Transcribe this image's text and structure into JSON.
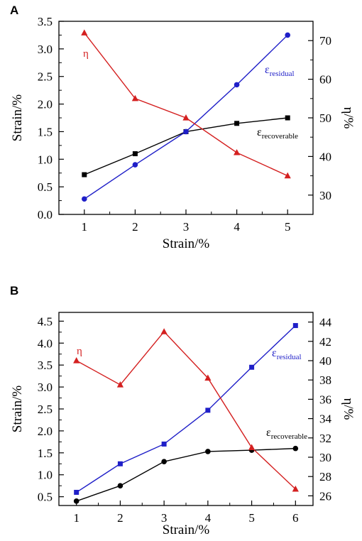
{
  "chart_data": [
    {
      "type": "line",
      "panel": "A",
      "xlabel": "Strain/%",
      "ylabel_left": "Strain/%",
      "ylabel_right": "η/%",
      "x": [
        1,
        2,
        3,
        4,
        5
      ],
      "xticks": [
        "1",
        "2",
        "3",
        "4",
        "5"
      ],
      "xlim": [
        0.5,
        5.5
      ],
      "ylim_left": [
        0,
        3.5
      ],
      "yticks_left": [
        "0.0",
        "0.5",
        "1.0",
        "1.5",
        "2.0",
        "2.5",
        "3.0",
        "3.5"
      ],
      "ylim_right": [
        25,
        75
      ],
      "yticks_right": [
        "30",
        "40",
        "50",
        "60",
        "70"
      ],
      "series": [
        {
          "name_base": "ε",
          "name_sub": "recoverable",
          "axis": "left",
          "color": "#000000",
          "marker": "square",
          "values": [
            0.72,
            1.1,
            1.5,
            1.65,
            1.75
          ]
        },
        {
          "name_base": "ε",
          "name_sub": "residual",
          "axis": "left",
          "color": "#1f1fc8",
          "marker": "circle",
          "values": [
            0.28,
            0.9,
            1.5,
            2.35,
            3.25
          ]
        },
        {
          "name_base": "η",
          "name_sub": "",
          "axis": "right",
          "color": "#d42020",
          "marker": "triangle",
          "values": [
            72,
            55,
            50,
            41,
            35
          ]
        }
      ]
    },
    {
      "type": "line",
      "panel": "B",
      "xlabel": "Strain/%",
      "ylabel_left": "Strain/%",
      "ylabel_right": "η/%",
      "x": [
        1,
        2,
        3,
        4,
        5,
        6
      ],
      "xticks": [
        "1",
        "2",
        "3",
        "4",
        "5",
        "6"
      ],
      "xlim": [
        0.6,
        6.4
      ],
      "ylim_left": [
        0.3,
        4.7
      ],
      "yticks_left": [
        "0.5",
        "1.0",
        "1.5",
        "2.0",
        "2.5",
        "3.0",
        "3.5",
        "4.0",
        "4.5"
      ],
      "ylim_right": [
        25,
        45
      ],
      "yticks_right": [
        "26",
        "28",
        "30",
        "32",
        "34",
        "36",
        "38",
        "40",
        "42",
        "44"
      ],
      "series": [
        {
          "name_base": "ε",
          "name_sub": "recoverable",
          "axis": "left",
          "color": "#000000",
          "marker": "circle",
          "values": [
            0.4,
            0.75,
            1.3,
            1.53,
            1.56,
            1.6
          ]
        },
        {
          "name_base": "ε",
          "name_sub": "residual",
          "axis": "left",
          "color": "#1f1fc8",
          "marker": "square",
          "values": [
            0.6,
            1.25,
            1.7,
            2.47,
            3.45,
            4.4
          ]
        },
        {
          "name_base": "η",
          "name_sub": "",
          "axis": "right",
          "color": "#d42020",
          "marker": "triangle",
          "values": [
            40,
            37.5,
            43,
            38.2,
            31,
            26.7
          ]
        }
      ]
    }
  ]
}
